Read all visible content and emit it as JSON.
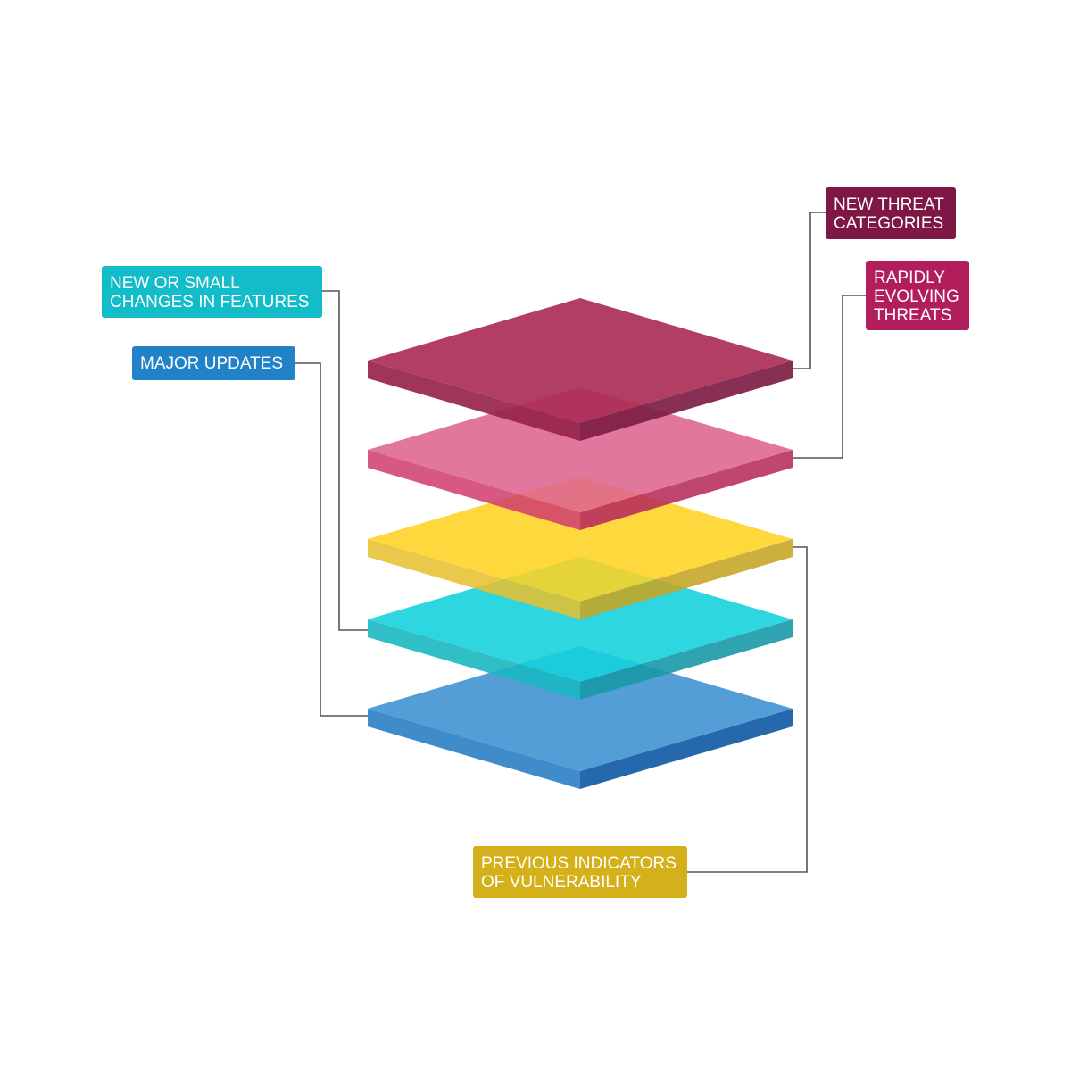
{
  "labels": {
    "new_threat": {
      "line1": "NEW THREAT",
      "line2": "CATEGORIES",
      "color": "#7e1743"
    },
    "rapidly_evolving": {
      "line1": "RAPIDLY",
      "line2": "EVOLVING",
      "line3": "THREATS",
      "color": "#b21d5b"
    },
    "new_features": {
      "line1": "NEW OR SMALL",
      "line2": "CHANGES IN FEATURES",
      "color": "#12bcc8"
    },
    "major_updates": {
      "line1": "MAJOR UPDATES",
      "color": "#2282c7"
    },
    "previous_indicators": {
      "line1": "PREVIOUS INDICATORS",
      "line2": "OF VULNERABILITY",
      "color": "#d4b01b"
    }
  },
  "layers": [
    {
      "name": "new-threat-categories",
      "top": "#ac2e57",
      "left": "#97244c",
      "right": "#7e1f45"
    },
    {
      "name": "rapidly-evolving-threats",
      "top": "#df6591",
      "left": "#d2426f",
      "right": "#b82c5e"
    },
    {
      "name": "previous-indicators",
      "top": "#fed322",
      "left": "#e6c132",
      "right": "#c6a624"
    },
    {
      "name": "new-or-small-changes",
      "top": "#18d2dd",
      "left": "#1ab8c2",
      "right": "#1a9aa9"
    },
    {
      "name": "major-updates",
      "top": "#4f9bd6",
      "left": "#3a88c9",
      "right": "#1e64aa"
    }
  ],
  "connector_color": "#555555"
}
